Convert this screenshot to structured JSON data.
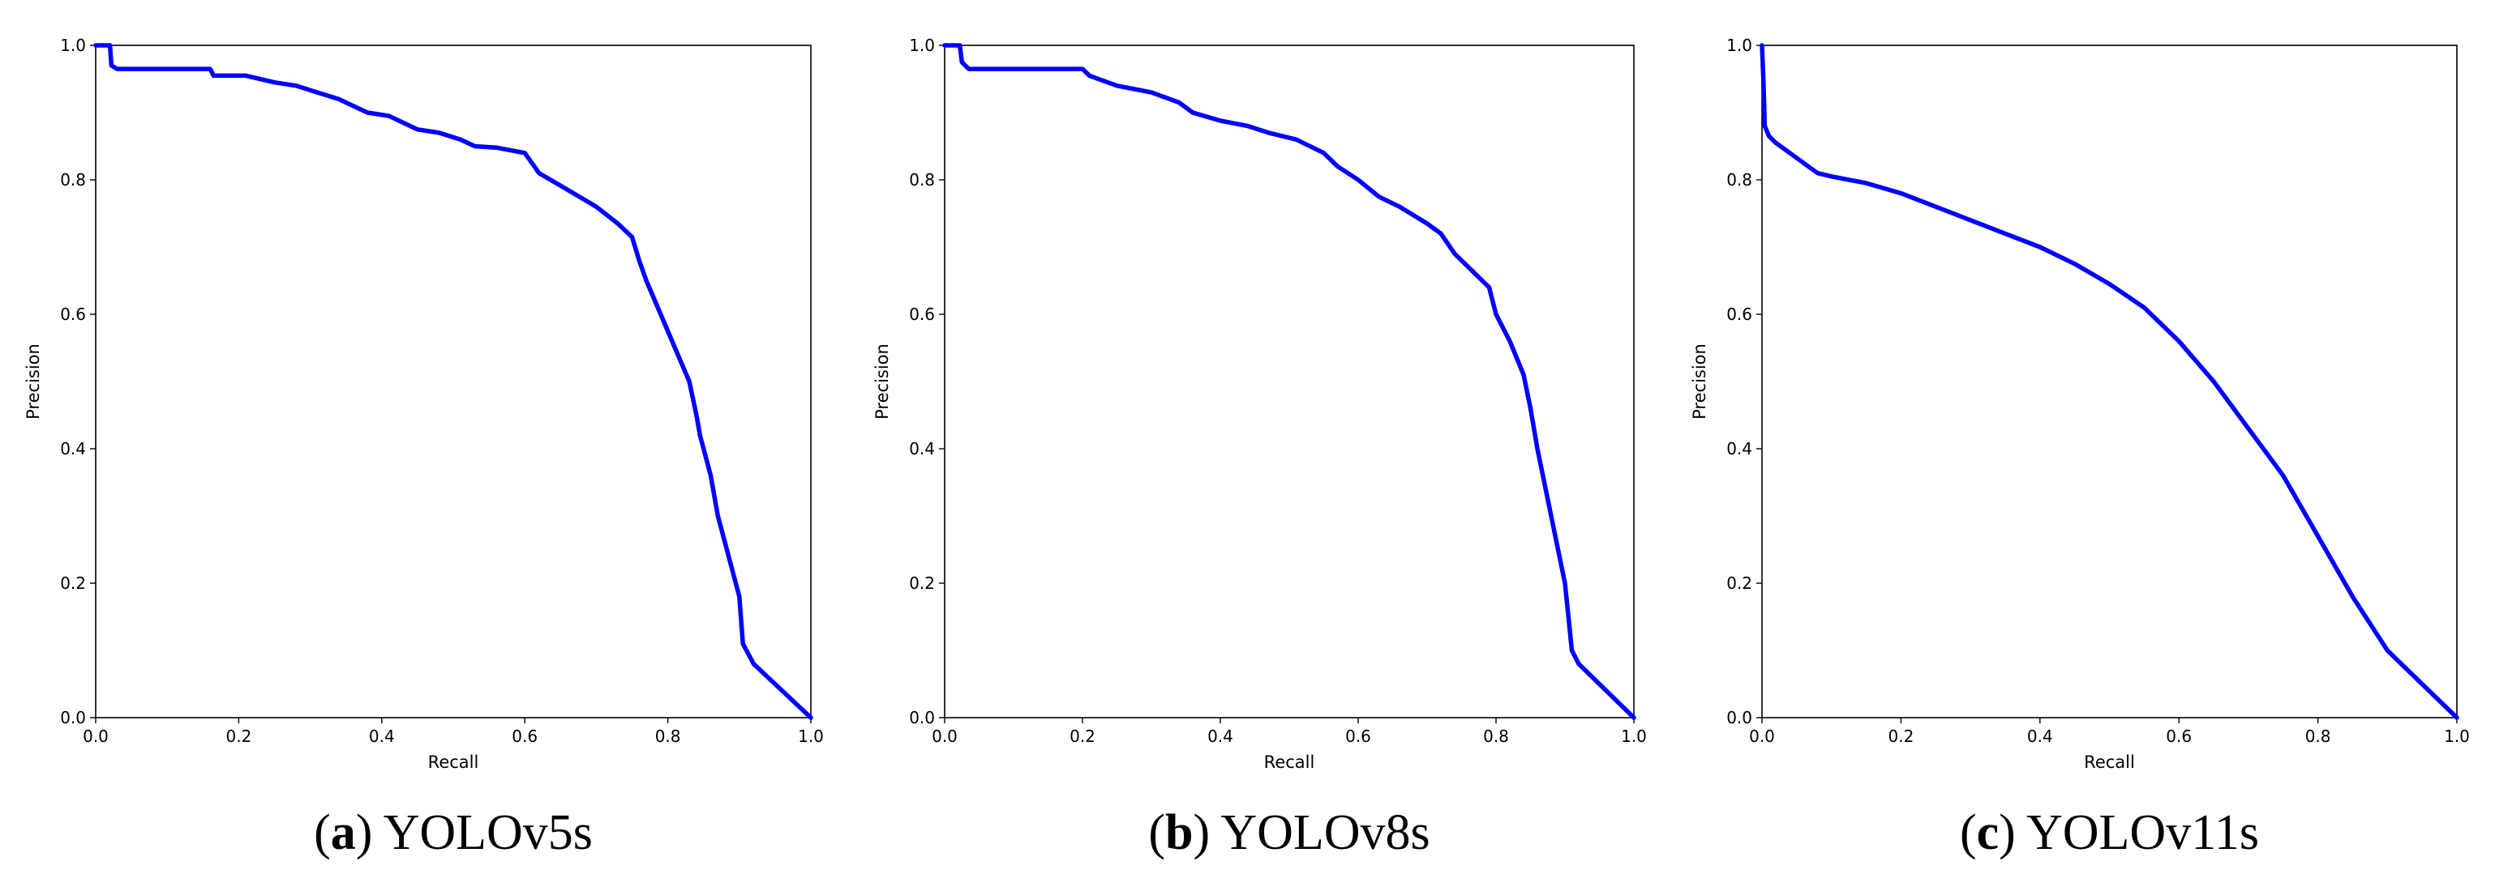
{
  "chart_data": [
    {
      "type": "line",
      "caption_letter": "a",
      "caption_text": "YOLOv5s",
      "xlabel": "Recall",
      "ylabel": "Precision",
      "xlim": [
        0,
        1
      ],
      "ylim": [
        0,
        1
      ],
      "xticks": [
        "0.0",
        "0.2",
        "0.4",
        "0.6",
        "0.8",
        "1.0"
      ],
      "yticks": [
        "0.0",
        "0.2",
        "0.4",
        "0.6",
        "0.8",
        "1.0"
      ],
      "grid": false,
      "line_color": "#0000ff",
      "series": [
        {
          "x": [
            0.0,
            0.02,
            0.022,
            0.03,
            0.16,
            0.165,
            0.21,
            0.25,
            0.28,
            0.31,
            0.34,
            0.37,
            0.38,
            0.41,
            0.43,
            0.45,
            0.48,
            0.51,
            0.53,
            0.56,
            0.6,
            0.62,
            0.66,
            0.7,
            0.73,
            0.75,
            0.76,
            0.77,
            0.79,
            0.81,
            0.83,
            0.84,
            0.845,
            0.86,
            0.87,
            0.88,
            0.89,
            0.9,
            0.905,
            0.91,
            0.92,
            1.0
          ],
          "y": [
            1.0,
            1.0,
            0.97,
            0.965,
            0.965,
            0.955,
            0.955,
            0.945,
            0.94,
            0.93,
            0.92,
            0.905,
            0.9,
            0.895,
            0.885,
            0.875,
            0.87,
            0.86,
            0.85,
            0.848,
            0.84,
            0.81,
            0.785,
            0.76,
            0.735,
            0.715,
            0.68,
            0.65,
            0.6,
            0.55,
            0.5,
            0.45,
            0.42,
            0.36,
            0.3,
            0.26,
            0.22,
            0.18,
            0.11,
            0.1,
            0.08,
            0.0
          ]
        }
      ]
    },
    {
      "type": "line",
      "caption_letter": "b",
      "caption_text": "YOLOv8s",
      "xlabel": "Recall",
      "ylabel": "Precision",
      "xlim": [
        0,
        1
      ],
      "ylim": [
        0,
        1
      ],
      "xticks": [
        "0.0",
        "0.2",
        "0.4",
        "0.6",
        "0.8",
        "1.0"
      ],
      "yticks": [
        "0.0",
        "0.2",
        "0.4",
        "0.6",
        "0.8",
        "1.0"
      ],
      "grid": false,
      "line_color": "#0000ff",
      "series": [
        {
          "x": [
            0.0,
            0.022,
            0.025,
            0.035,
            0.2,
            0.21,
            0.25,
            0.3,
            0.34,
            0.36,
            0.4,
            0.44,
            0.47,
            0.51,
            0.55,
            0.57,
            0.6,
            0.63,
            0.66,
            0.7,
            0.72,
            0.74,
            0.76,
            0.79,
            0.8,
            0.82,
            0.84,
            0.85,
            0.86,
            0.87,
            0.88,
            0.89,
            0.9,
            0.905,
            0.91,
            0.92,
            1.0
          ],
          "y": [
            1.0,
            1.0,
            0.975,
            0.965,
            0.965,
            0.955,
            0.94,
            0.93,
            0.915,
            0.9,
            0.888,
            0.88,
            0.87,
            0.86,
            0.84,
            0.82,
            0.8,
            0.775,
            0.76,
            0.735,
            0.72,
            0.69,
            0.67,
            0.64,
            0.6,
            0.56,
            0.51,
            0.46,
            0.4,
            0.35,
            0.3,
            0.25,
            0.2,
            0.15,
            0.1,
            0.08,
            0.0
          ]
        }
      ]
    },
    {
      "type": "line",
      "caption_letter": "c",
      "caption_text": "YOLOv11s",
      "xlabel": "Recall",
      "ylabel": "Precision",
      "xlim": [
        0,
        1
      ],
      "ylim": [
        0,
        1
      ],
      "xticks": [
        "0.0",
        "0.2",
        "0.4",
        "0.6",
        "0.8",
        "1.0"
      ],
      "yticks": [
        "0.0",
        "0.2",
        "0.4",
        "0.6",
        "0.8",
        "1.0"
      ],
      "grid": false,
      "line_color": "#0000ff",
      "series": [
        {
          "x": [
            0.0,
            0.002,
            0.004,
            0.01,
            0.02,
            0.04,
            0.06,
            0.08,
            0.1,
            0.15,
            0.2,
            0.25,
            0.3,
            0.35,
            0.4,
            0.45,
            0.5,
            0.55,
            0.6,
            0.65,
            0.7,
            0.75,
            0.8,
            0.85,
            0.9,
            0.92,
            1.0
          ],
          "y": [
            1.0,
            0.95,
            0.88,
            0.865,
            0.855,
            0.84,
            0.825,
            0.81,
            0.805,
            0.795,
            0.78,
            0.76,
            0.74,
            0.72,
            0.7,
            0.675,
            0.645,
            0.61,
            0.56,
            0.5,
            0.43,
            0.36,
            0.27,
            0.18,
            0.1,
            0.08,
            0.0
          ]
        }
      ]
    }
  ]
}
